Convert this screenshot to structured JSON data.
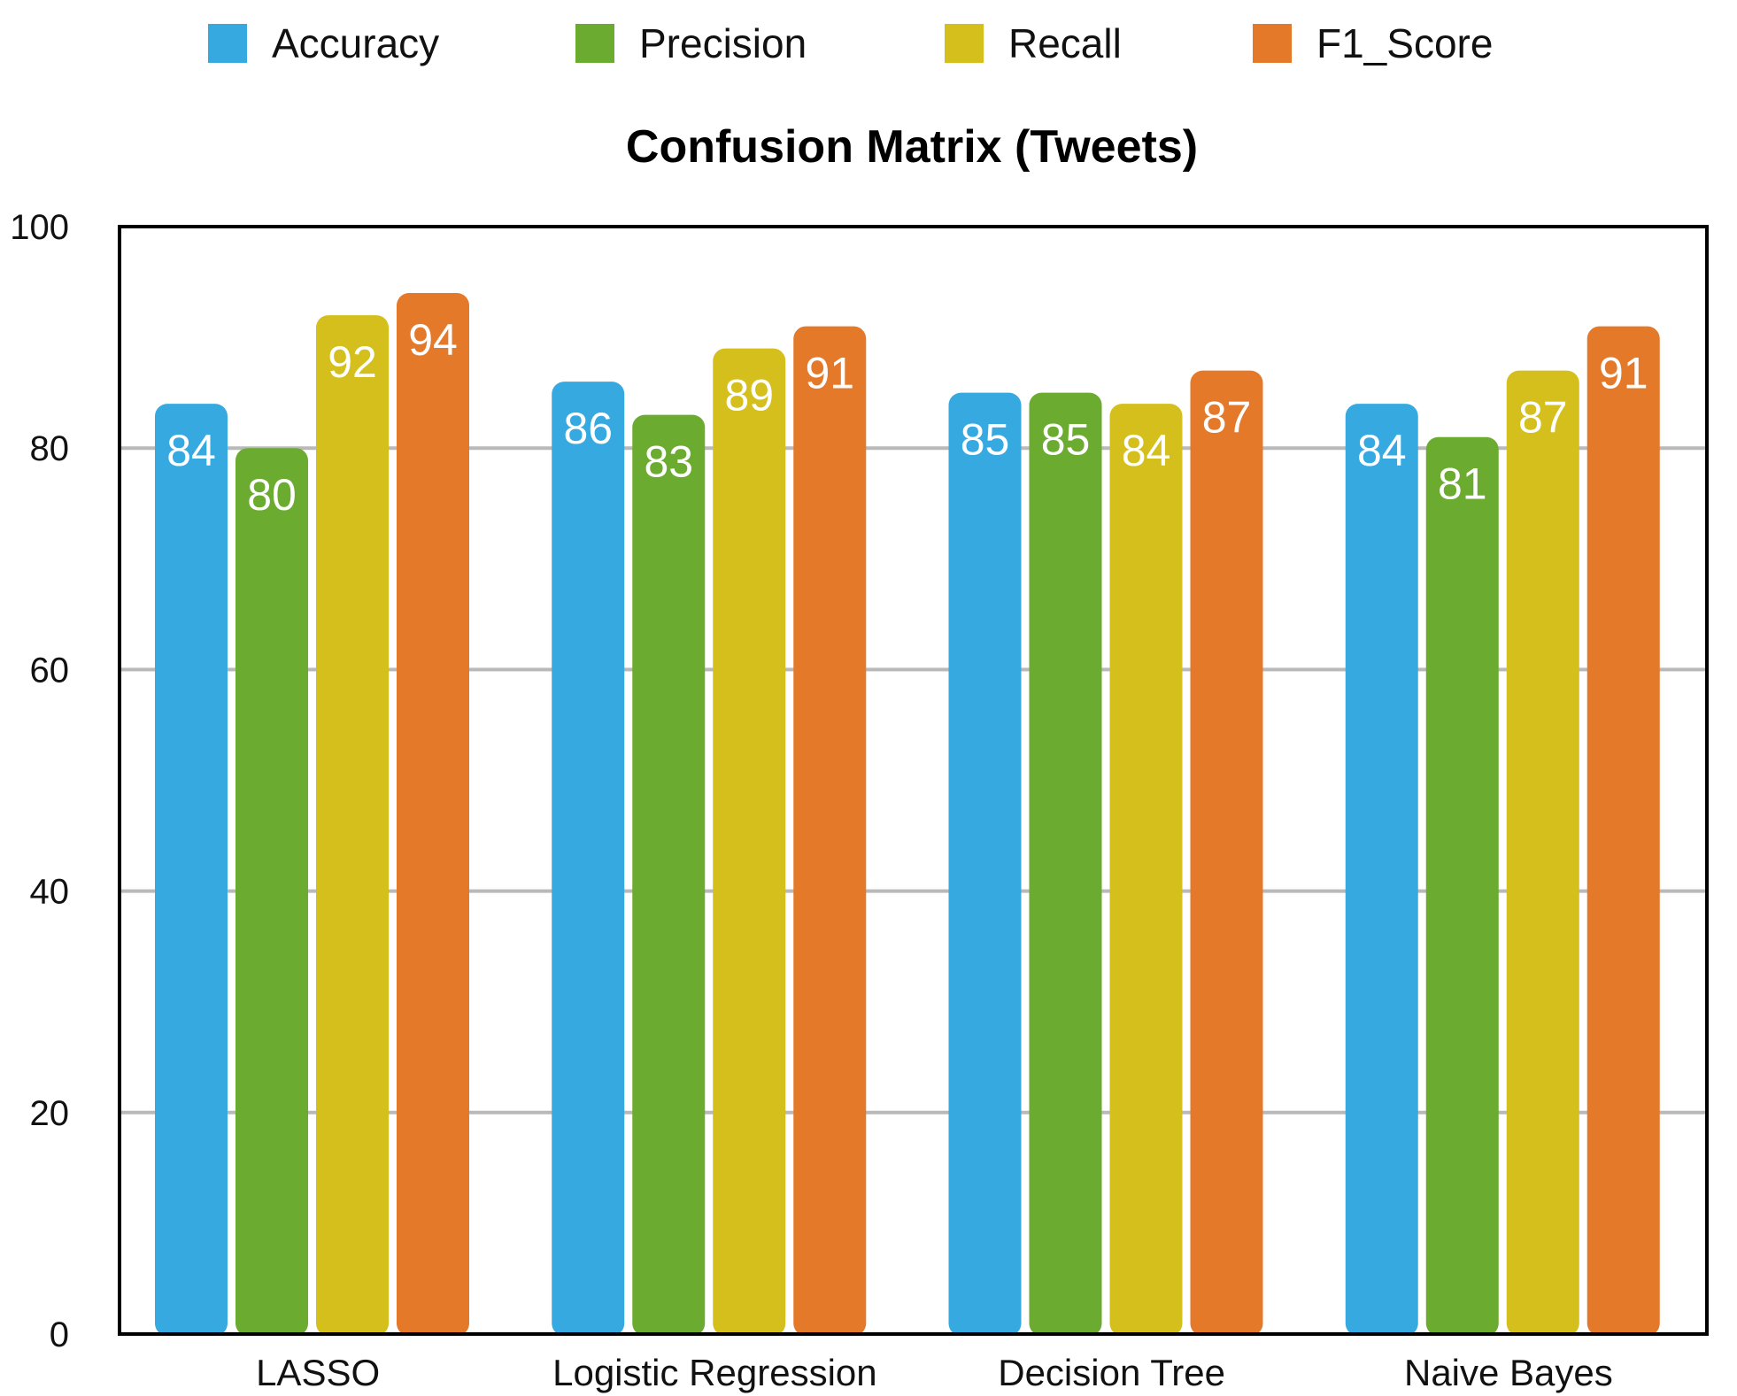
{
  "chart_data": {
    "type": "bar",
    "title": "Confusion Matrix (Tweets)",
    "xlabel": "",
    "ylabel": "",
    "ylim": [
      0,
      100
    ],
    "yticks": [
      0,
      20,
      40,
      60,
      80,
      100
    ],
    "grid": true,
    "legend_position": "top",
    "categories": [
      "LASSO",
      "Logistic Regression",
      "Decision Tree",
      "Naive Bayes"
    ],
    "series": [
      {
        "name": "Accuracy",
        "color": "#35a9e0",
        "values": [
          84,
          86,
          85,
          84
        ]
      },
      {
        "name": "Precision",
        "color": "#6bab2f",
        "values": [
          80,
          83,
          85,
          81
        ]
      },
      {
        "name": "Recall",
        "color": "#d4bf1c",
        "values": [
          92,
          89,
          84,
          87
        ]
      },
      {
        "name": "F1_Score",
        "color": "#e5792a",
        "values": [
          94,
          91,
          87,
          91
        ]
      }
    ]
  }
}
